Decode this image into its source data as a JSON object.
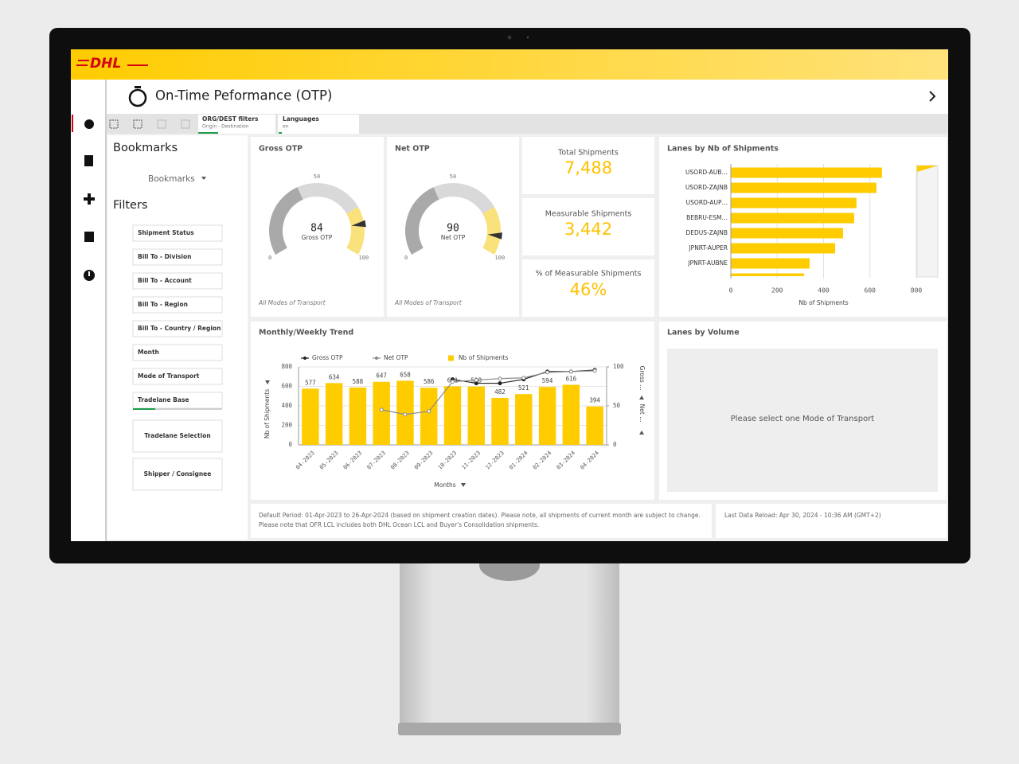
{
  "header": {
    "logo": "DHL",
    "title": "On-Time Peformance (OTP)"
  },
  "toolbar": {
    "tabs": [
      {
        "title": "ORG/DEST filters",
        "subtitle": "Origin - Destination"
      },
      {
        "title": "Languages",
        "subtitle": "en"
      }
    ]
  },
  "sidebar": {
    "bookmarks_title": "Bookmarks",
    "bookmarks_button": "Bookmarks",
    "filters_title": "Filters",
    "filters": [
      "Shipment Status",
      "Bill To - Division",
      "Bill To - Account",
      "Bill To - Region",
      "Bill To - Country / Region",
      "Month",
      "Mode of Transport",
      "Tradelane Base"
    ],
    "buttons": [
      "Tradelane Selection",
      "Shipper / Consignee"
    ]
  },
  "kpis": [
    {
      "label": "Total Shipments",
      "value": "7,488"
    },
    {
      "label": "Measurable Shipments",
      "value": "3,442"
    },
    {
      "label": "% of Measurable Shipments",
      "value": "46%"
    }
  ],
  "chart_data": [
    {
      "type": "gauge",
      "title": "Gross OTP",
      "value": 84,
      "label": "Gross OTP",
      "range": [
        0,
        100
      ],
      "ticks": [
        0,
        50,
        100
      ],
      "bands": [
        {
          "from": 0,
          "to": 40,
          "color": "#a9a9a9"
        },
        {
          "from": 40,
          "to": 75,
          "color": "#d9d9d9"
        },
        {
          "from": 75,
          "to": 100,
          "color": "#f9e27c"
        }
      ],
      "footnote": "All Modes of Transport"
    },
    {
      "type": "gauge",
      "title": "Net OTP",
      "value": 90,
      "label": "Net OTP",
      "range": [
        0,
        100
      ],
      "ticks": [
        0,
        50,
        100
      ],
      "bands": [
        {
          "from": 0,
          "to": 40,
          "color": "#a9a9a9"
        },
        {
          "from": 40,
          "to": 75,
          "color": "#d9d9d9"
        },
        {
          "from": 75,
          "to": 100,
          "color": "#f9e27c"
        }
      ],
      "footnote": "All Modes of Transport"
    },
    {
      "type": "hbar",
      "title": "Lanes by Nb of Shipments",
      "categories": [
        "USORD-AUB…",
        "USORD-ZAJNB",
        "USORD-AUP…",
        "BEBRU-ESM…",
        "DEDUS-ZAJNB",
        "JPNRT-AUPER",
        "JPNRT-AUBNE",
        null
      ],
      "values": [
        652,
        628,
        542,
        532,
        484,
        450,
        340,
        316
      ],
      "color": "#ffcc00",
      "xlim": [
        0,
        800
      ],
      "xticks": [
        0,
        200,
        400,
        600,
        800
      ],
      "xlabel": "Nb of Shipments",
      "grid": true
    },
    {
      "type": "combo",
      "title": "Monthly/Weekly Trend",
      "categories": [
        "04-2023",
        "05-2023",
        "06-2023",
        "07-2023",
        "08-2023",
        "09-2023",
        "10-2023",
        "11-2023",
        "12-2023",
        "01-2024",
        "02-2024",
        "03-2024",
        "04-2024"
      ],
      "series": [
        {
          "name": "Gross OTP",
          "kind": "line",
          "axis": "y2",
          "color": "#222222",
          "values": [
            null,
            null,
            null,
            null,
            null,
            null,
            84,
            79,
            79,
            84,
            94,
            94,
            96
          ]
        },
        {
          "name": "Net OTP",
          "kind": "line",
          "axis": "y2",
          "color": "#8a8a8a",
          "values": [
            null,
            null,
            null,
            45,
            39,
            43,
            81,
            83,
            85,
            86,
            93,
            94,
            95
          ]
        },
        {
          "name": "Nb of Shipments",
          "kind": "bar",
          "color": "#ffcc00",
          "values": [
            577,
            634,
            588,
            647,
            658,
            586,
            601,
            598,
            482,
            521,
            594,
            616,
            394
          ]
        }
      ],
      "ylim": [
        0,
        800
      ],
      "yticks": [
        0,
        200,
        400,
        600,
        800
      ],
      "y2lim": [
        0,
        100
      ],
      "y2ticks": [
        0,
        50,
        100
      ],
      "ylabel": "Nb of Shipments",
      "y2label": [
        "Gross ...",
        "Net ..."
      ],
      "xlabel": "Months",
      "grid": true
    }
  ],
  "lanes_by_volume": {
    "title": "Lanes by Volume",
    "message": "Please select one Mode of Transport"
  },
  "footer": {
    "note": [
      "Default Period: 01-Apr-2023 to 26-Apr-2024 (based on shipment creation dates). Please note, all shipments of current month are subject to change.",
      "Please note that OFR LCL includes both DHL Ocean LCL and Buyer's Consolidation shipments."
    ],
    "reload": "Last Data Reload: Apr 30, 2024 - 10:36 AM (GMT+2)"
  }
}
